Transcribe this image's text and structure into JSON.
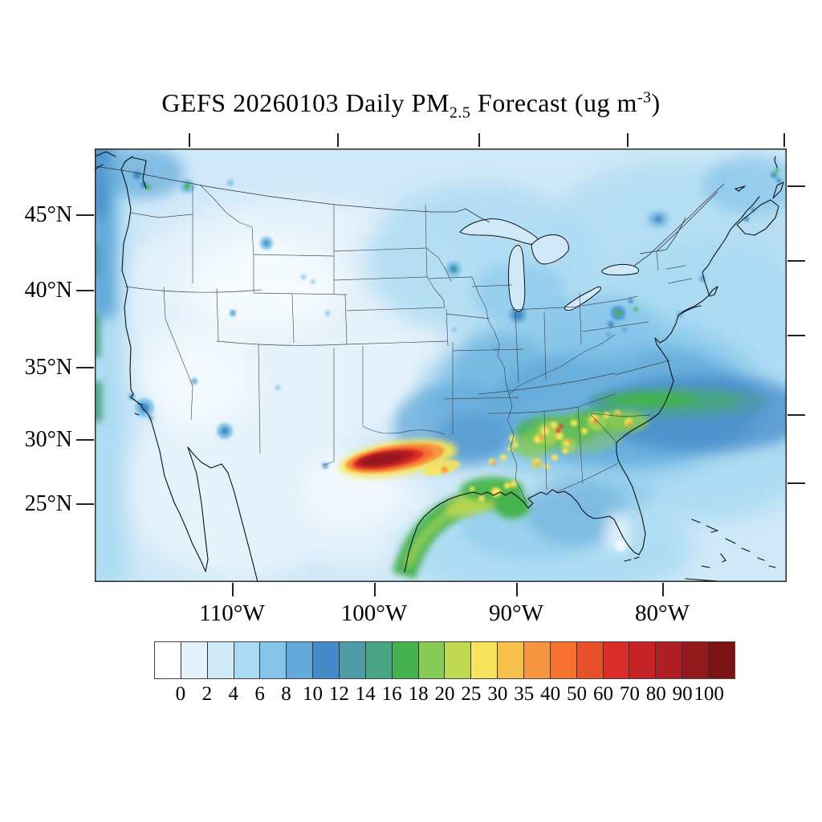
{
  "title": {
    "prefix": "GEFS 20260103 Daily PM",
    "sub": "2.5",
    "mid": " Forecast (ug m",
    "sup": "-3",
    "suffix": ")",
    "full": "GEFS 20260103 Daily PM2.5 Forecast (ug m-3)"
  },
  "axes": {
    "lat_labels": [
      "45°N",
      "40°N",
      "35°N",
      "30°N",
      "25°N"
    ],
    "lon_labels": [
      "110°W",
      "100°W",
      "90°W",
      "80°W"
    ]
  },
  "colorbar": {
    "units": "ug m-3",
    "ticks": [
      "0",
      "2",
      "4",
      "6",
      "8",
      "10",
      "12",
      "14",
      "16",
      "18",
      "20",
      "25",
      "30",
      "35",
      "40",
      "50",
      "60",
      "70",
      "80",
      "90",
      "100"
    ],
    "colors": [
      "#ffffff",
      "#e4f2fb",
      "#d0e9f8",
      "#aadaf2",
      "#84c5e9",
      "#63a9da",
      "#4589c8",
      "#4e9aa6",
      "#4aa585",
      "#45b24e",
      "#87ca55",
      "#bed950",
      "#f8e45c",
      "#f8c14e",
      "#f79640",
      "#f5722e",
      "#e74f2a",
      "#d92e27",
      "#c42227",
      "#ad1f24",
      "#94191d",
      "#7c1315"
    ]
  },
  "map": {
    "region": "Continental United States",
    "features": [
      {
        "name": "texas-hotspot",
        "description": "Elongated dark-red plume in west Texas, core above 100 ug m-3"
      },
      {
        "name": "gulf-coast-green-band",
        "description": "Green band (16-25) along the Texas-Louisiana Gulf coast"
      },
      {
        "name": "southeast-speckles",
        "description": "Scattered yellow/orange/red spots (25-70) over MS, AL, GA, SC"
      },
      {
        "name": "offshore-atlantic-band",
        "description": "Green-teal plume (12-18) extending east off the Carolinas"
      },
      {
        "name": "west-coast-strip",
        "description": "Narrow teal-green strip (12-16) along the northern California coast"
      },
      {
        "name": "urban-specks",
        "description": "Small blue maxima at Seattle, Minneapolis, Chicago, Pittsburgh, Montreal, Los Angeles, Phoenix"
      }
    ]
  }
}
